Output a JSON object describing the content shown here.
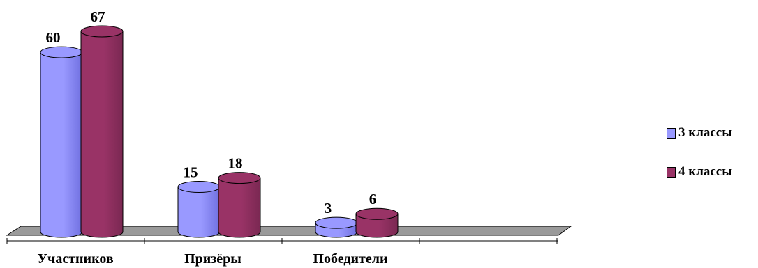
{
  "chart_data": {
    "type": "bar",
    "categories": [
      "Участников",
      "Призёры",
      "Победители"
    ],
    "series": [
      {
        "name": "3 классы",
        "values": [
          60,
          15,
          3
        ],
        "color": "#9999ff",
        "dark": "#7070e0"
      },
      {
        "name": "4 классы",
        "values": [
          67,
          18,
          6
        ],
        "color": "#993366",
        "dark": "#7a2852"
      }
    ],
    "ylim": [
      0,
      67
    ],
    "style": "3d-cylinder",
    "legend_position": "right"
  }
}
